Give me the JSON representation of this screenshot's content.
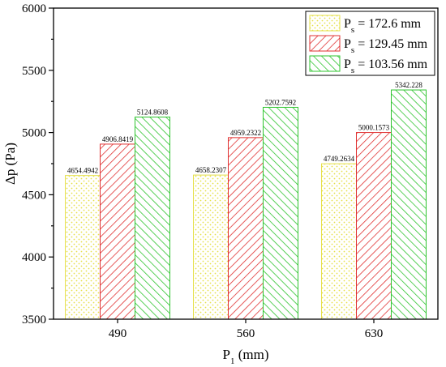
{
  "chart_data": {
    "type": "bar",
    "categories": [
      "490",
      "560",
      "630"
    ],
    "series": [
      {
        "name_main": "P",
        "name_sub": "s",
        "name_rest": " = 172.6 mm",
        "color": "#e6e04a",
        "pattern": "dots",
        "values": [
          4654.4942,
          4658.2307,
          4749.2634
        ],
        "labels": [
          "4654.4942",
          "4658.2307",
          "4749.2634"
        ]
      },
      {
        "name_main": "P",
        "name_sub": "s",
        "name_rest": " = 129.45 mm",
        "color": "#e03030",
        "pattern": "hatch",
        "values": [
          4906.8419,
          4959.2322,
          5000.1573
        ],
        "labels": [
          "4906.8419",
          "4959.2322",
          "5000.1573"
        ]
      },
      {
        "name_main": "P",
        "name_sub": "s",
        "name_rest": " = 103.56 mm",
        "color": "#2fc42f",
        "pattern": "hatch",
        "values": [
          5124.8608,
          5202.7592,
          5342.228
        ],
        "labels": [
          "5124.8608",
          "5202.7592",
          "5342.228"
        ]
      }
    ],
    "xlabel_main": "P",
    "xlabel_sub": "1",
    "xlabel_rest": " (mm)",
    "ylabel": "Δp (Pa)",
    "ylim": [
      3500,
      6000
    ],
    "yticks": [
      "3500",
      "4000",
      "4500",
      "5000",
      "5500",
      "6000"
    ],
    "grid": false,
    "legend_position": "top-right"
  }
}
